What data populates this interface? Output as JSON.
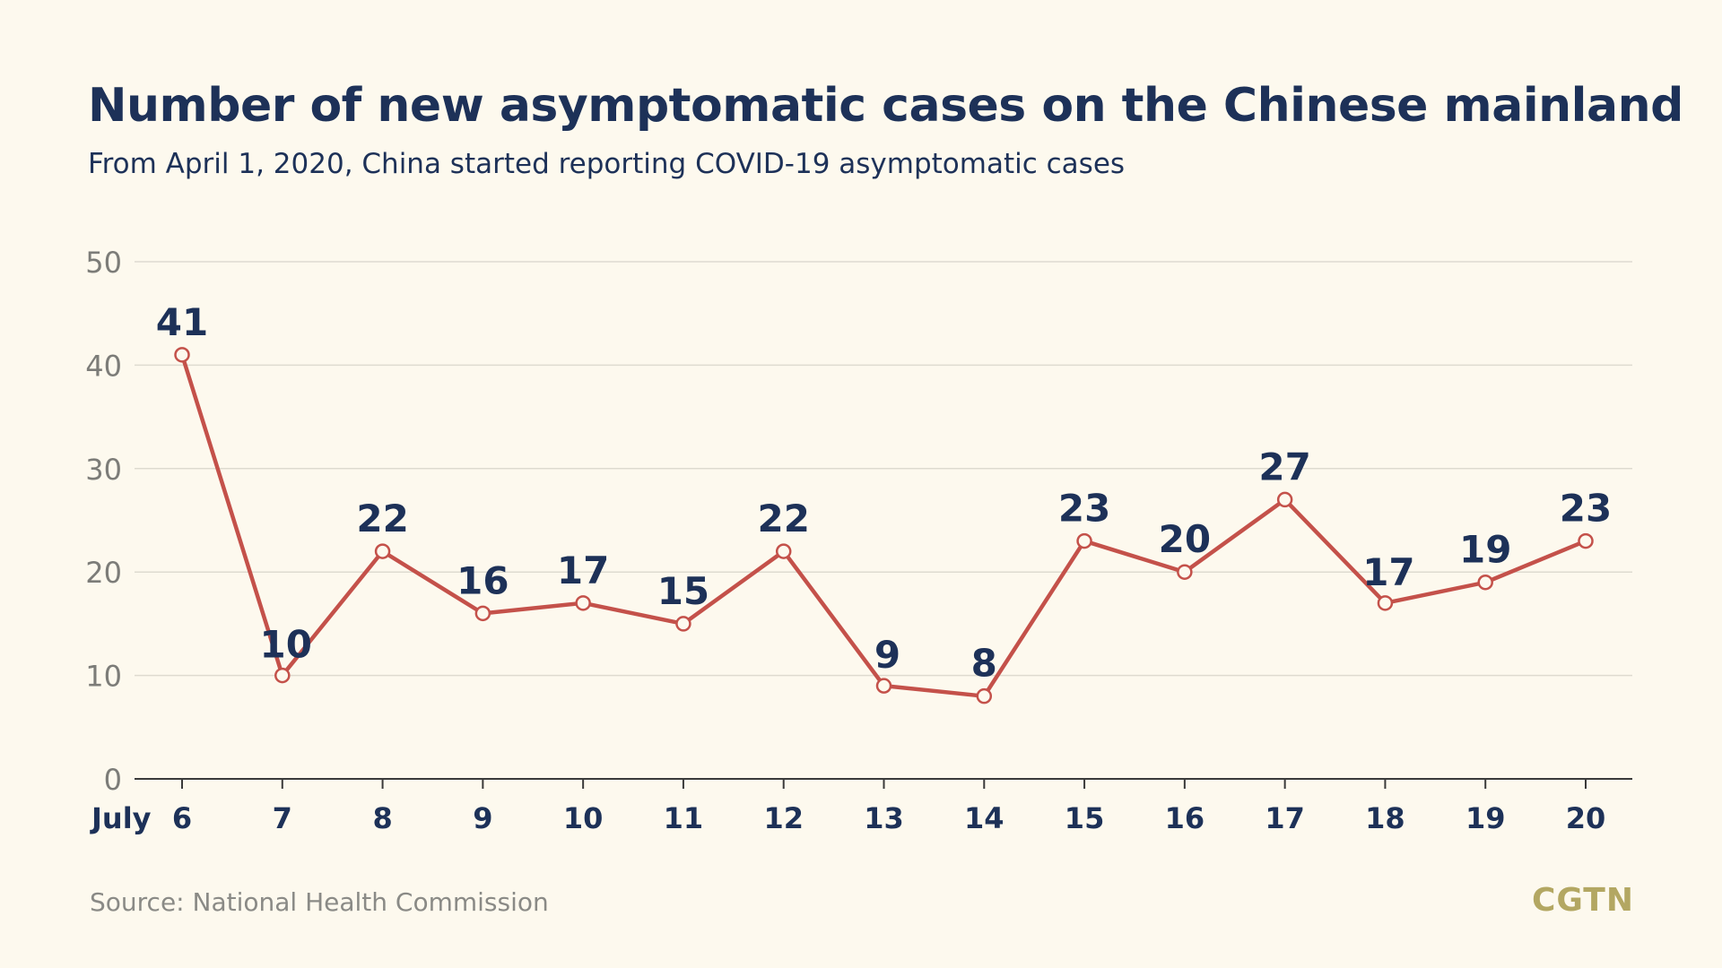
{
  "colors": {
    "background": "#fdf9ee",
    "title": "#1d3158",
    "line": "#c4514a",
    "marker_fill": "#fdf9ee",
    "grid": "#dedbd0",
    "ytick": "#7c7c78",
    "xtick": "#1d3158",
    "source": "#8a8a86",
    "logo": "#b3a762"
  },
  "source_text": "Source: National Health Commission",
  "logo_text": "CGTN",
  "chart_data": {
    "type": "line",
    "title": "Number of new asymptomatic cases on the Chinese mainland",
    "subtitle": "From April 1, 2020, China started reporting COVID-19 asymptomatic cases",
    "x_prefix_label": "July",
    "categories": [
      "6",
      "7",
      "8",
      "9",
      "10",
      "11",
      "12",
      "13",
      "14",
      "15",
      "16",
      "17",
      "18",
      "19",
      "20"
    ],
    "series": [
      {
        "values": [
          41,
          10,
          22,
          16,
          17,
          15,
          22,
          9,
          8,
          23,
          20,
          27,
          17,
          19,
          23
        ],
        "data_labels": [
          "41",
          "10",
          "22",
          "16",
          "17",
          "15",
          "22",
          "9",
          "8",
          "23",
          "20",
          "27",
          "17",
          "19",
          "23"
        ]
      }
    ],
    "ylim": [
      0,
      50
    ],
    "yticks": [
      "0",
      "10",
      "20",
      "30",
      "40",
      "50"
    ],
    "ytick_values": [
      0,
      10,
      20,
      30,
      40,
      50
    ],
    "grid": true,
    "legend": "none"
  }
}
